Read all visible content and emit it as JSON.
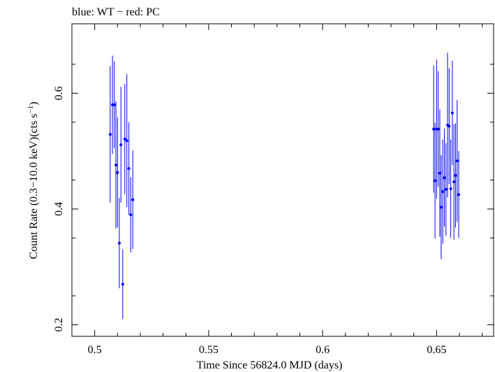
{
  "chart_data": {
    "type": "scatter",
    "title": "blue: WT − red: PC",
    "xlabel": "Time Since 56824.0 MJD (days)",
    "ylabel_parts": {
      "main": "Count Rate (0.3−10.0 keV)(cts s",
      "sup": "−1",
      "close": ")"
    },
    "xlim": [
      0.49,
      0.675
    ],
    "ylim": [
      0.18,
      0.72
    ],
    "xticks": [
      {
        "value": 0.5,
        "label": "0.5"
      },
      {
        "value": 0.55,
        "label": "0.55"
      },
      {
        "value": 0.6,
        "label": "0.6"
      },
      {
        "value": 0.65,
        "label": "0.65"
      }
    ],
    "yticks": [
      {
        "value": 0.2,
        "label": "0.2"
      },
      {
        "value": 0.4,
        "label": "0.4"
      },
      {
        "value": 0.6,
        "label": "0.6"
      }
    ],
    "series": [
      {
        "name": "WT",
        "color": "#0000ff",
        "points": [
          {
            "x": 0.5068,
            "y": 0.529,
            "err": 0.118
          },
          {
            "x": 0.5078,
            "y": 0.58,
            "err": 0.085
          },
          {
            "x": 0.5086,
            "y": 0.58,
            "err": 0.075
          },
          {
            "x": 0.5093,
            "y": 0.476,
            "err": 0.11
          },
          {
            "x": 0.51,
            "y": 0.463,
            "err": 0.095
          },
          {
            "x": 0.5108,
            "y": 0.341,
            "err": 0.078
          },
          {
            "x": 0.5115,
            "y": 0.511,
            "err": 0.1
          },
          {
            "x": 0.5123,
            "y": 0.27,
            "err": 0.06
          },
          {
            "x": 0.5132,
            "y": 0.521,
            "err": 0.095
          },
          {
            "x": 0.5141,
            "y": 0.518,
            "err": 0.115
          },
          {
            "x": 0.515,
            "y": 0.47,
            "err": 0.08
          },
          {
            "x": 0.5158,
            "y": 0.39,
            "err": 0.065
          },
          {
            "x": 0.5167,
            "y": 0.416,
            "err": 0.085
          },
          {
            "x": 0.6487,
            "y": 0.538,
            "err": 0.11
          },
          {
            "x": 0.6493,
            "y": 0.449,
            "err": 0.1
          },
          {
            "x": 0.65,
            "y": 0.538,
            "err": 0.12
          },
          {
            "x": 0.6507,
            "y": 0.538,
            "err": 0.1
          },
          {
            "x": 0.6514,
            "y": 0.462,
            "err": 0.11
          },
          {
            "x": 0.652,
            "y": 0.403,
            "err": 0.09
          },
          {
            "x": 0.6527,
            "y": 0.43,
            "err": 0.09
          },
          {
            "x": 0.6534,
            "y": 0.454,
            "err": 0.085
          },
          {
            "x": 0.6541,
            "y": 0.434,
            "err": 0.08
          },
          {
            "x": 0.6548,
            "y": 0.545,
            "err": 0.125
          },
          {
            "x": 0.6555,
            "y": 0.543,
            "err": 0.1
          },
          {
            "x": 0.6562,
            "y": 0.435,
            "err": 0.085
          },
          {
            "x": 0.6569,
            "y": 0.566,
            "err": 0.09
          },
          {
            "x": 0.6576,
            "y": 0.447,
            "err": 0.1
          },
          {
            "x": 0.6583,
            "y": 0.458,
            "err": 0.09
          },
          {
            "x": 0.659,
            "y": 0.483,
            "err": 0.105
          },
          {
            "x": 0.6597,
            "y": 0.425,
            "err": 0.075
          }
        ]
      }
    ]
  }
}
